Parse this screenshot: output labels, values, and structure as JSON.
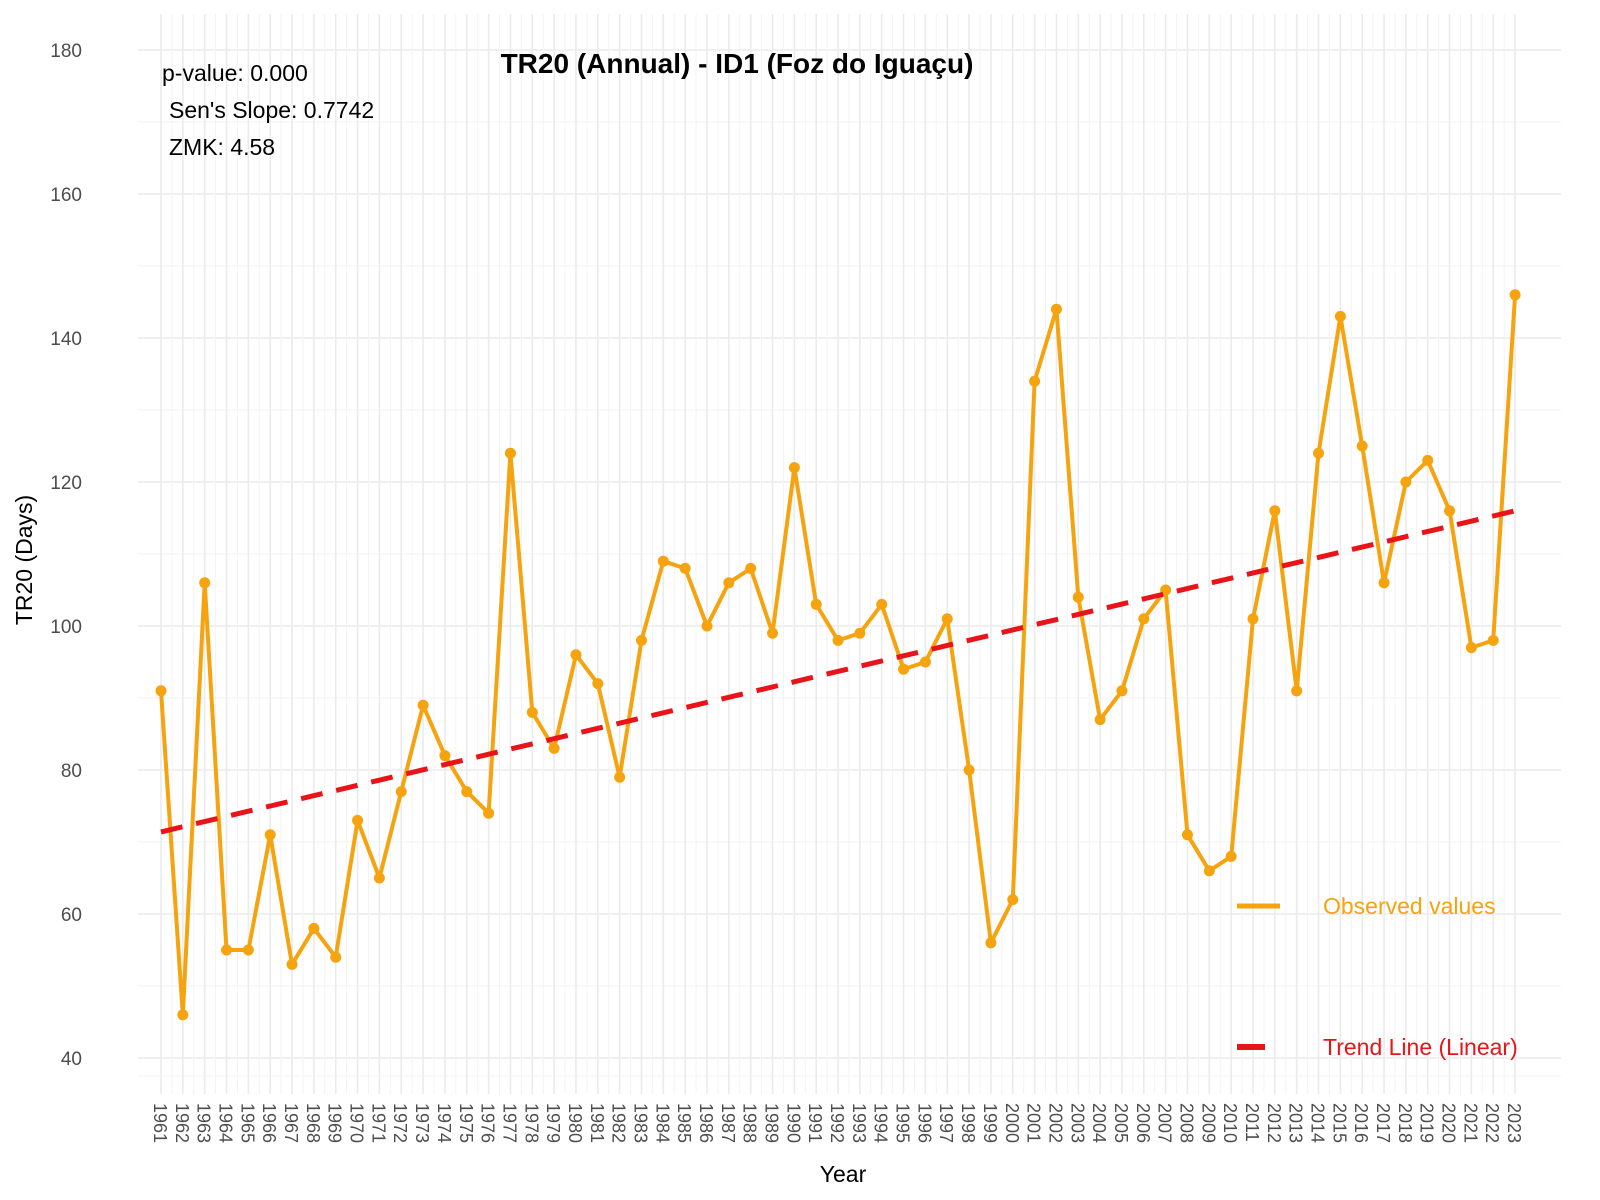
{
  "chart_data": {
    "type": "line",
    "title": "TR20 (Annual) - ID1 (Foz do Iguaçu)",
    "xlabel": "Year",
    "ylabel": "TR20 (Days)",
    "ylim": [
      35,
      185
    ],
    "yticks": [
      40,
      60,
      80,
      100,
      120,
      140,
      160,
      180
    ],
    "grid": true,
    "legend_position": "bottom-right",
    "annotations": [
      "p-value: 0.000",
      "Sen's Slope: 0.7742",
      "ZMK: 4.58"
    ],
    "x": [
      1961,
      1962,
      1963,
      1964,
      1965,
      1966,
      1967,
      1968,
      1969,
      1970,
      1971,
      1972,
      1973,
      1974,
      1975,
      1976,
      1977,
      1978,
      1979,
      1980,
      1981,
      1982,
      1983,
      1984,
      1985,
      1986,
      1987,
      1988,
      1989,
      1990,
      1991,
      1992,
      1993,
      1994,
      1995,
      1996,
      1997,
      1998,
      1999,
      2000,
      2001,
      2002,
      2003,
      2004,
      2005,
      2006,
      2007,
      2008,
      2009,
      2010,
      2011,
      2012,
      2013,
      2014,
      2015,
      2016,
      2017,
      2018,
      2019,
      2020,
      2021,
      2022,
      2023
    ],
    "series": [
      {
        "name": "Observed values",
        "color": "#F5A30F",
        "style": "solid-with-points",
        "values": [
          91,
          46,
          106,
          55,
          55,
          71,
          53,
          58,
          54,
          73,
          65,
          77,
          89,
          82,
          77,
          74,
          124,
          88,
          83,
          96,
          92,
          79,
          98,
          109,
          108,
          100,
          106,
          108,
          99,
          122,
          103,
          98,
          99,
          103,
          94,
          95,
          101,
          80,
          56,
          62,
          134,
          144,
          104,
          87,
          91,
          101,
          105,
          71,
          66,
          68,
          101,
          116,
          91,
          124,
          143,
          125,
          106,
          120,
          123,
          116,
          97,
          98,
          146
        ]
      },
      {
        "name": "Trend Line (Linear)",
        "color": "#E8141A",
        "style": "dashed",
        "start": [
          1961,
          71.4
        ],
        "end": [
          2023,
          116.0
        ]
      }
    ]
  }
}
